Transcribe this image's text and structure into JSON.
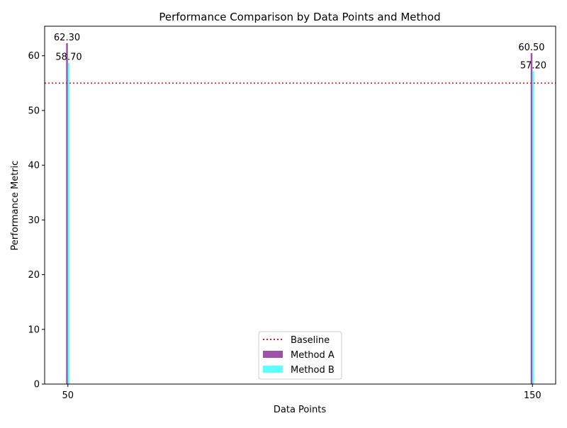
{
  "chart_data": {
    "type": "bar",
    "title": "Performance Comparison by Data Points and Method",
    "xlabel": "Data Points",
    "ylabel": "Performance Metric",
    "x": [
      50,
      150
    ],
    "x_tick_labels": [
      "50",
      "150"
    ],
    "xlim": [
      45,
      155
    ],
    "ylim": [
      0,
      65.4
    ],
    "y_ticks": [
      0,
      10,
      20,
      30,
      40,
      50,
      60
    ],
    "series": [
      {
        "name": "Method A",
        "values": [
          62.3,
          60.5
        ],
        "labels": [
          "62.30",
          "60.50"
        ],
        "color": "#a050a8"
      },
      {
        "name": "Method B",
        "values": [
          58.7,
          57.2
        ],
        "labels": [
          "58.70",
          "57.20"
        ],
        "color": "#5cffff"
      }
    ],
    "baseline": {
      "name": "Baseline",
      "value": 55,
      "color": "#e0151a",
      "style": "dotted"
    },
    "legend": {
      "placement": "lower-center",
      "entries": [
        "Baseline",
        "Method A",
        "Method B"
      ]
    },
    "grid": false
  }
}
